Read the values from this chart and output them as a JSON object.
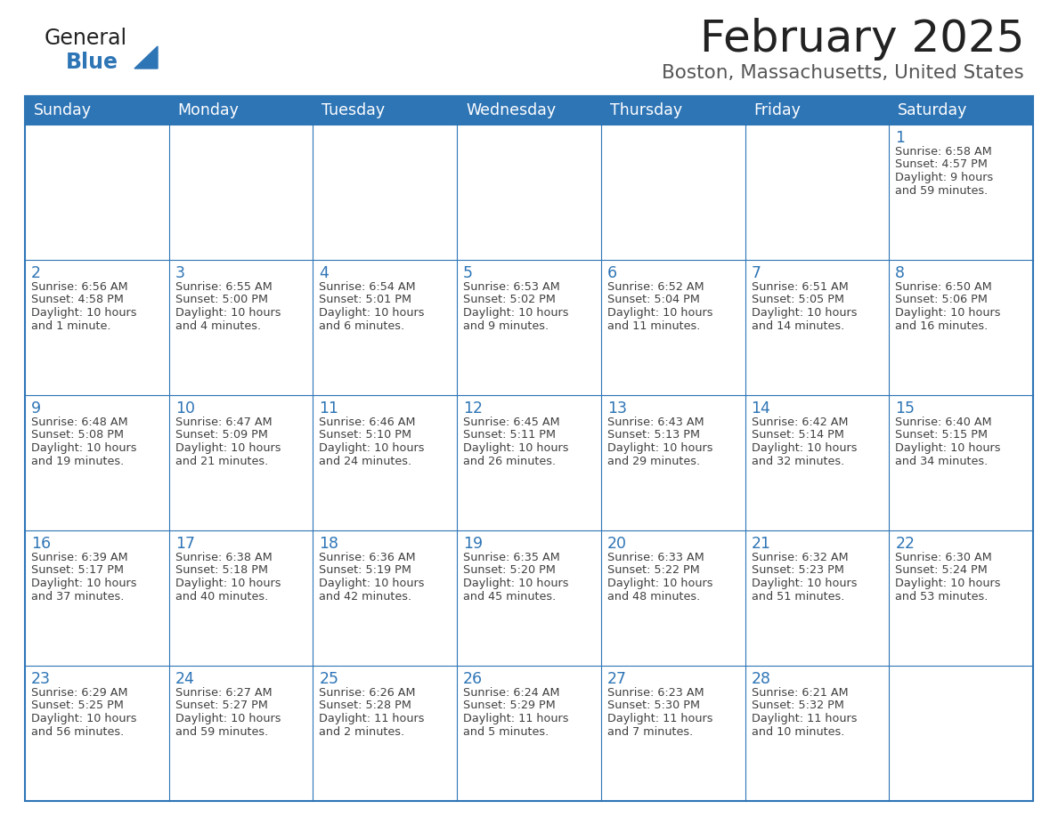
{
  "title": "February 2025",
  "subtitle": "Boston, Massachusetts, United States",
  "header_bg": "#2E75B6",
  "header_text_color": "#FFFFFF",
  "cell_bg": "#FFFFFF",
  "cell_border_color": "#2E75B6",
  "day_number_color": "#2E75B6",
  "cell_text_color": "#404040",
  "days_of_week": [
    "Sunday",
    "Monday",
    "Tuesday",
    "Wednesday",
    "Thursday",
    "Friday",
    "Saturday"
  ],
  "logo_general_color": "#222222",
  "logo_blue_color": "#2E75B6",
  "title_color": "#222222",
  "subtitle_color": "#555555",
  "calendar_data": [
    [
      null,
      null,
      null,
      null,
      null,
      null,
      {
        "day": 1,
        "sunrise": "6:58 AM",
        "sunset": "4:57 PM",
        "daylight": "9 hours\nand 59 minutes."
      }
    ],
    [
      {
        "day": 2,
        "sunrise": "6:56 AM",
        "sunset": "4:58 PM",
        "daylight": "10 hours\nand 1 minute."
      },
      {
        "day": 3,
        "sunrise": "6:55 AM",
        "sunset": "5:00 PM",
        "daylight": "10 hours\nand 4 minutes."
      },
      {
        "day": 4,
        "sunrise": "6:54 AM",
        "sunset": "5:01 PM",
        "daylight": "10 hours\nand 6 minutes."
      },
      {
        "day": 5,
        "sunrise": "6:53 AM",
        "sunset": "5:02 PM",
        "daylight": "10 hours\nand 9 minutes."
      },
      {
        "day": 6,
        "sunrise": "6:52 AM",
        "sunset": "5:04 PM",
        "daylight": "10 hours\nand 11 minutes."
      },
      {
        "day": 7,
        "sunrise": "6:51 AM",
        "sunset": "5:05 PM",
        "daylight": "10 hours\nand 14 minutes."
      },
      {
        "day": 8,
        "sunrise": "6:50 AM",
        "sunset": "5:06 PM",
        "daylight": "10 hours\nand 16 minutes."
      }
    ],
    [
      {
        "day": 9,
        "sunrise": "6:48 AM",
        "sunset": "5:08 PM",
        "daylight": "10 hours\nand 19 minutes."
      },
      {
        "day": 10,
        "sunrise": "6:47 AM",
        "sunset": "5:09 PM",
        "daylight": "10 hours\nand 21 minutes."
      },
      {
        "day": 11,
        "sunrise": "6:46 AM",
        "sunset": "5:10 PM",
        "daylight": "10 hours\nand 24 minutes."
      },
      {
        "day": 12,
        "sunrise": "6:45 AM",
        "sunset": "5:11 PM",
        "daylight": "10 hours\nand 26 minutes."
      },
      {
        "day": 13,
        "sunrise": "6:43 AM",
        "sunset": "5:13 PM",
        "daylight": "10 hours\nand 29 minutes."
      },
      {
        "day": 14,
        "sunrise": "6:42 AM",
        "sunset": "5:14 PM",
        "daylight": "10 hours\nand 32 minutes."
      },
      {
        "day": 15,
        "sunrise": "6:40 AM",
        "sunset": "5:15 PM",
        "daylight": "10 hours\nand 34 minutes."
      }
    ],
    [
      {
        "day": 16,
        "sunrise": "6:39 AM",
        "sunset": "5:17 PM",
        "daylight": "10 hours\nand 37 minutes."
      },
      {
        "day": 17,
        "sunrise": "6:38 AM",
        "sunset": "5:18 PM",
        "daylight": "10 hours\nand 40 minutes."
      },
      {
        "day": 18,
        "sunrise": "6:36 AM",
        "sunset": "5:19 PM",
        "daylight": "10 hours\nand 42 minutes."
      },
      {
        "day": 19,
        "sunrise": "6:35 AM",
        "sunset": "5:20 PM",
        "daylight": "10 hours\nand 45 minutes."
      },
      {
        "day": 20,
        "sunrise": "6:33 AM",
        "sunset": "5:22 PM",
        "daylight": "10 hours\nand 48 minutes."
      },
      {
        "day": 21,
        "sunrise": "6:32 AM",
        "sunset": "5:23 PM",
        "daylight": "10 hours\nand 51 minutes."
      },
      {
        "day": 22,
        "sunrise": "6:30 AM",
        "sunset": "5:24 PM",
        "daylight": "10 hours\nand 53 minutes."
      }
    ],
    [
      {
        "day": 23,
        "sunrise": "6:29 AM",
        "sunset": "5:25 PM",
        "daylight": "10 hours\nand 56 minutes."
      },
      {
        "day": 24,
        "sunrise": "6:27 AM",
        "sunset": "5:27 PM",
        "daylight": "10 hours\nand 59 minutes."
      },
      {
        "day": 25,
        "sunrise": "6:26 AM",
        "sunset": "5:28 PM",
        "daylight": "11 hours\nand 2 minutes."
      },
      {
        "day": 26,
        "sunrise": "6:24 AM",
        "sunset": "5:29 PM",
        "daylight": "11 hours\nand 5 minutes."
      },
      {
        "day": 27,
        "sunrise": "6:23 AM",
        "sunset": "5:30 PM",
        "daylight": "11 hours\nand 7 minutes."
      },
      {
        "day": 28,
        "sunrise": "6:21 AM",
        "sunset": "5:32 PM",
        "daylight": "11 hours\nand 10 minutes."
      },
      null
    ]
  ]
}
